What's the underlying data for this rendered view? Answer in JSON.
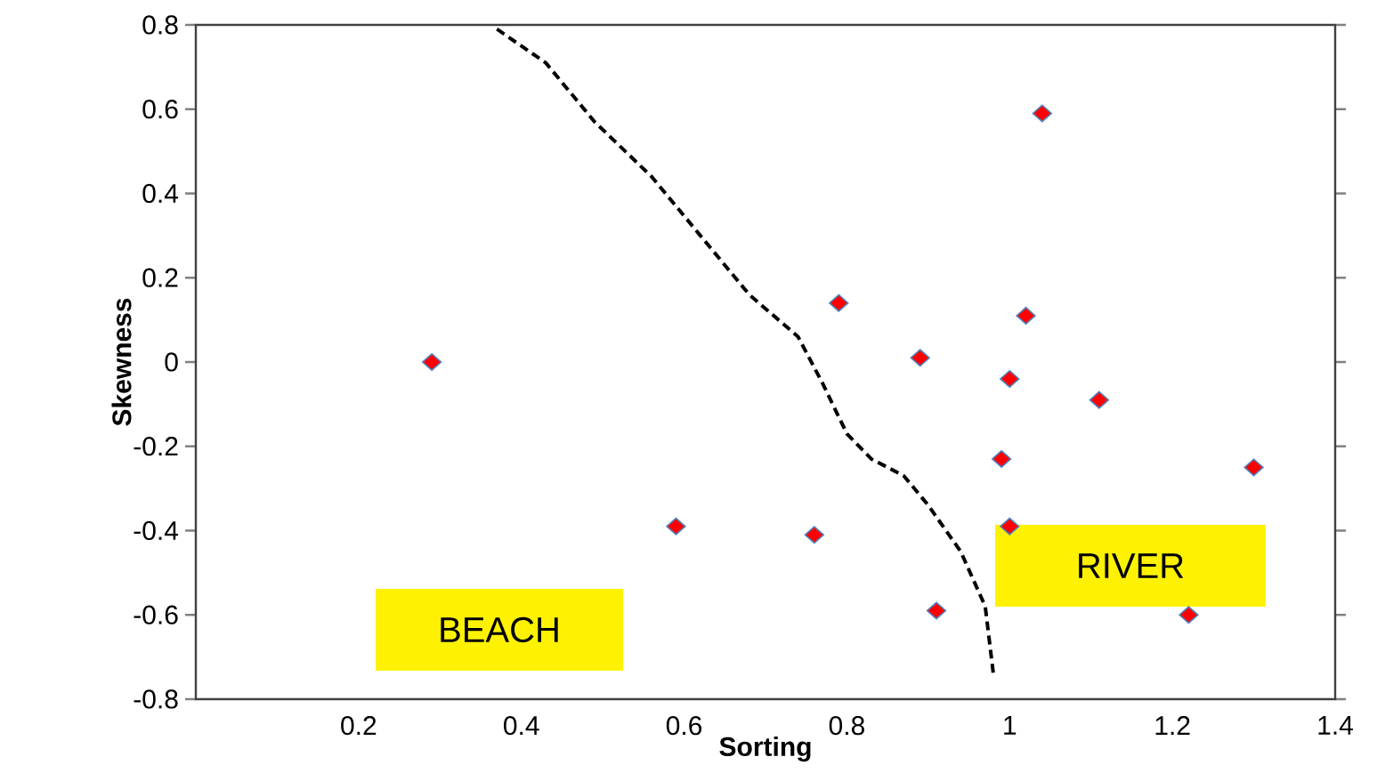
{
  "chart_data": {
    "type": "scatter",
    "xlabel": "Sorting",
    "ylabel": "Skewness",
    "xlim": [
      0,
      1.4
    ],
    "ylim": [
      -0.8,
      0.8
    ],
    "xticks": [
      0.2,
      0.4,
      0.6,
      0.8,
      1,
      1.2,
      1.4
    ],
    "yticks": [
      -0.8,
      -0.6,
      -0.4,
      -0.2,
      0,
      0.2,
      0.4,
      0.6,
      0.8
    ],
    "grid": false,
    "annotations": [
      "BEACH",
      "RIVER"
    ],
    "series": [
      {
        "type": "line",
        "color": "#000000",
        "line_style": "dashed",
        "marker": "none",
        "x": [
          0.37,
          0.43,
          0.49,
          0.56,
          0.62,
          0.68,
          0.74,
          0.77,
          0.8,
          0.83,
          0.87,
          0.9,
          0.94,
          0.97,
          0.98
        ],
        "values": [
          0.79,
          0.71,
          0.57,
          0.44,
          0.3,
          0.16,
          0.06,
          -0.05,
          -0.17,
          -0.23,
          -0.27,
          -0.34,
          -0.45,
          -0.58,
          -0.74
        ]
      },
      {
        "color": "#ff0000",
        "marker": "diamond",
        "x": [
          0.29,
          0.59,
          0.76,
          0.79,
          0.89,
          0.91,
          0.99,
          1.0,
          1.0,
          1.02,
          1.04,
          1.11,
          1.22,
          1.3
        ],
        "values": [
          0,
          -0.39,
          -0.41,
          0.14,
          0.01,
          -0.59,
          -0.23,
          -0.04,
          -0.39,
          0.11,
          0.59,
          -0.09,
          -0.6,
          -0.25
        ]
      }
    ]
  }
}
